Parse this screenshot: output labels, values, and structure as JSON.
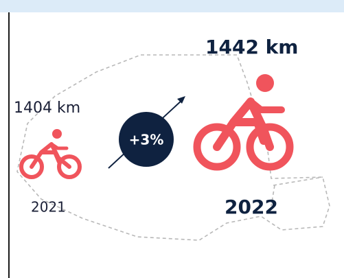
{
  "items": [
    {
      "value_label": "1404 km",
      "year": "2021"
    },
    {
      "value_label": "1442 km",
      "year": "2022"
    }
  ],
  "change": "+3%"
}
